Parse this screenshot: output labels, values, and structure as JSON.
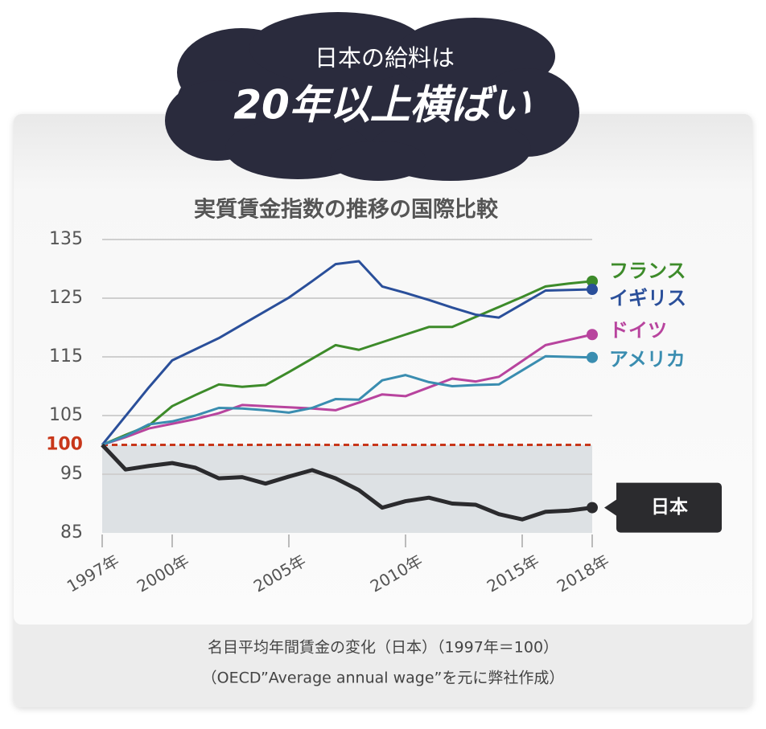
{
  "headline": [
    "日本の給料は",
    "20年以上横ばい"
  ],
  "note": [
    "名目平均年間賃金の変化（日本）（1997年＝100）",
    "（OECD”Average annual wage”を元に弊社作成）"
  ],
  "chart_data": {
    "type": "line",
    "title": "実質賃金指数の推移の国際比較",
    "x": [
      1997,
      1998,
      1999,
      2000,
      2001,
      2002,
      2003,
      2004,
      2005,
      2006,
      2007,
      2008,
      2009,
      2010,
      2011,
      2012,
      2013,
      2014,
      2015,
      2016,
      2017,
      2018
    ],
    "xlim": [
      1997,
      2018
    ],
    "xticks": [
      {
        "value": 1997,
        "label": "1997年"
      },
      {
        "value": 2000,
        "label": "2000年"
      },
      {
        "value": 2005,
        "label": "2005年"
      },
      {
        "value": 2010,
        "label": "2010年"
      },
      {
        "value": 2015,
        "label": "2015年"
      },
      {
        "value": 2018,
        "label": "2018年"
      }
    ],
    "ylim": [
      85,
      135
    ],
    "yticks": [
      85,
      95,
      100,
      105,
      115,
      125,
      135
    ],
    "grid": true,
    "reference_line": {
      "value": 100,
      "color": "#c8371a"
    },
    "series": [
      {
        "name": "フランス",
        "color": "#3d8b2a",
        "values": [
          100,
          101.7,
          103.3,
          106.6,
          108.5,
          110.3,
          109.9,
          110.2,
          112.4,
          114.7,
          117.0,
          116.2,
          117.5,
          118.8,
          120.1,
          120.1,
          121.8,
          123.5,
          125.2,
          127.0,
          127.5,
          127.9
        ]
      },
      {
        "name": "イギリス",
        "color": "#2a4f9a",
        "values": [
          100,
          104.9,
          109.8,
          114.4,
          116.3,
          118.2,
          120.5,
          122.8,
          125.1,
          127.9,
          130.8,
          131.3,
          127.0,
          125.9,
          124.7,
          123.4,
          122.2,
          121.7,
          124.0,
          126.3,
          126.4,
          126.5
        ]
      },
      {
        "name": "ドイツ",
        "color": "#b8449e",
        "values": [
          100,
          101.3,
          102.8,
          103.6,
          104.4,
          105.4,
          106.8,
          106.6,
          106.4,
          106.2,
          105.9,
          107.2,
          108.6,
          108.3,
          109.8,
          111.3,
          110.8,
          111.6,
          114.3,
          117.0,
          117.9,
          118.8
        ]
      },
      {
        "name": "アメリカ",
        "color": "#3a8db0",
        "values": [
          100,
          101.5,
          103.5,
          104.0,
          105.0,
          106.3,
          106.2,
          105.9,
          105.5,
          106.3,
          107.8,
          107.7,
          111.0,
          111.9,
          110.7,
          110.0,
          110.2,
          110.3,
          112.7,
          115.1,
          115.0,
          114.9
        ]
      },
      {
        "name": "日本",
        "color": "#2b2b2e",
        "values": [
          100,
          95.8,
          96.4,
          96.9,
          96.1,
          94.3,
          94.5,
          93.4,
          94.6,
          95.7,
          94.3,
          92.3,
          89.3,
          90.4,
          91.0,
          90.0,
          89.8,
          88.2,
          87.3,
          88.6,
          88.8,
          89.3
        ]
      }
    ]
  }
}
